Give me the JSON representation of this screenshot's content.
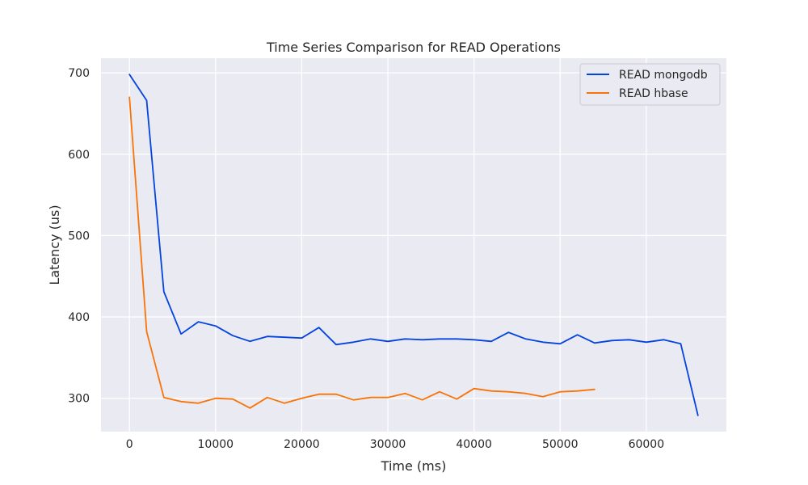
{
  "chart_data": {
    "type": "line",
    "title": "Time Series Comparison for READ Operations",
    "xlabel": "Time (ms)",
    "ylabel": "Latency (us)",
    "xlim": [
      -3300,
      69300
    ],
    "ylim": [
      259,
      718
    ],
    "xticks": [
      0,
      10000,
      20000,
      30000,
      40000,
      50000,
      60000
    ],
    "yticks": [
      300,
      400,
      500,
      600,
      700
    ],
    "grid": true,
    "legend_position": "top-right",
    "series": [
      {
        "name": "READ mongodb",
        "color": "#0343df",
        "x": [
          0,
          2000,
          4000,
          6000,
          8000,
          10000,
          12000,
          14000,
          16000,
          18000,
          20000,
          22000,
          24000,
          26000,
          28000,
          30000,
          32000,
          34000,
          36000,
          38000,
          40000,
          42000,
          44000,
          46000,
          48000,
          50000,
          52000,
          54000,
          56000,
          58000,
          60000,
          62000,
          64000,
          66000
        ],
        "y": [
          698,
          666,
          431,
          379,
          394,
          389,
          377,
          370,
          376,
          375,
          374,
          387,
          366,
          369,
          373,
          370,
          373,
          372,
          373,
          373,
          372,
          370,
          381,
          373,
          369,
          367,
          378,
          368,
          371,
          372,
          369,
          372,
          367,
          279
        ]
      },
      {
        "name": "READ hbase",
        "color": "#f97306",
        "x": [
          0,
          2000,
          4000,
          6000,
          8000,
          10000,
          12000,
          14000,
          16000,
          18000,
          20000,
          22000,
          24000,
          26000,
          28000,
          30000,
          32000,
          34000,
          36000,
          38000,
          40000,
          42000,
          44000,
          46000,
          48000,
          50000,
          52000,
          54000
        ],
        "y": [
          670,
          382,
          301,
          296,
          294,
          300,
          299,
          288,
          301,
          294,
          300,
          305,
          305,
          298,
          301,
          301,
          306,
          298,
          308,
          299,
          312,
          309,
          308,
          306,
          302,
          308,
          309,
          311
        ]
      }
    ]
  }
}
